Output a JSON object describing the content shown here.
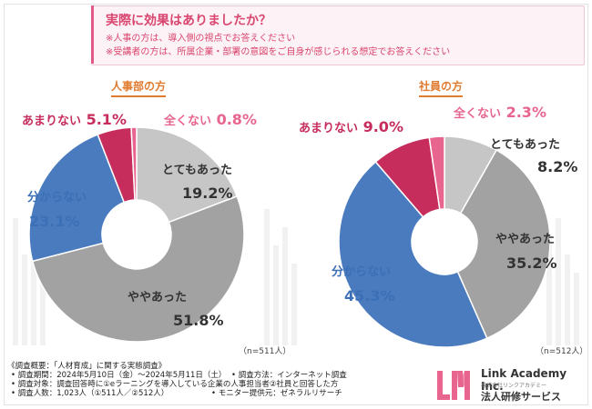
{
  "header": {
    "question": "実際に効果はありましたか？",
    "note1": "※人事の方は、導入側の視点でお答えください",
    "note2": "※受講者の方は、所属企業・部署の意図をご自身が感じられる想定でお答えください"
  },
  "chart_data": [
    {
      "type": "pie",
      "title": "人事部の方",
      "sample": "（n=511人）",
      "slices": [
        {
          "label": "とてもあった",
          "value": 19.2,
          "value_text": "19.2%",
          "color": "#c6c6c6"
        },
        {
          "label": "ややあった",
          "value": 51.8,
          "value_text": "51.8%",
          "color": "#a2a2a2"
        },
        {
          "label": "分からない",
          "value": 23.1,
          "value_text": "23.1%",
          "color": "#4a7bbf"
        },
        {
          "label": "あまりない",
          "value": 5.1,
          "value_text": "5.1%",
          "color": "#c72d5c"
        },
        {
          "label": "全くない",
          "value": 0.8,
          "value_text": "0.8%",
          "color": "#e8658f"
        }
      ]
    },
    {
      "type": "pie",
      "title": "社員の方",
      "sample": "（n=512人）",
      "slices": [
        {
          "label": "とてもあった",
          "value": 8.2,
          "value_text": "8.2%",
          "color": "#c6c6c6"
        },
        {
          "label": "ややあった",
          "value": 35.2,
          "value_text": "35.2%",
          "color": "#a2a2a2"
        },
        {
          "label": "分からない",
          "value": 45.3,
          "value_text": "45.3%",
          "color": "#4a7bbf"
        },
        {
          "label": "あまりない",
          "value": 9.0,
          "value_text": "9.0%",
          "color": "#c72d5c"
        },
        {
          "label": "全くない",
          "value": 2.3,
          "value_text": "2.3%",
          "color": "#e8658f"
        }
      ]
    }
  ],
  "footer": {
    "survey_title": "《調査概要：「人材育成」に関する実態調査》",
    "period": "• 調査期間：2024年5月10日（金）〜2024年5月11日（土）",
    "target": "• 調査対象：調査回答時に①eラーニングを導入している企業の人事担当者②社員と回答した方",
    "count": "• 調査人数：1,023人（①511人／②512人）",
    "method": "• 調査方法：インターネット調査",
    "provider": "• モニター提供元：ゼネラルリサーチ"
  },
  "brand": {
    "name_en": "Link Academy Inc.",
    "name_sub": "株式会社リンクアカデミー",
    "name_jp": "法人研修サービス",
    "logo_color": "#e8658f"
  }
}
